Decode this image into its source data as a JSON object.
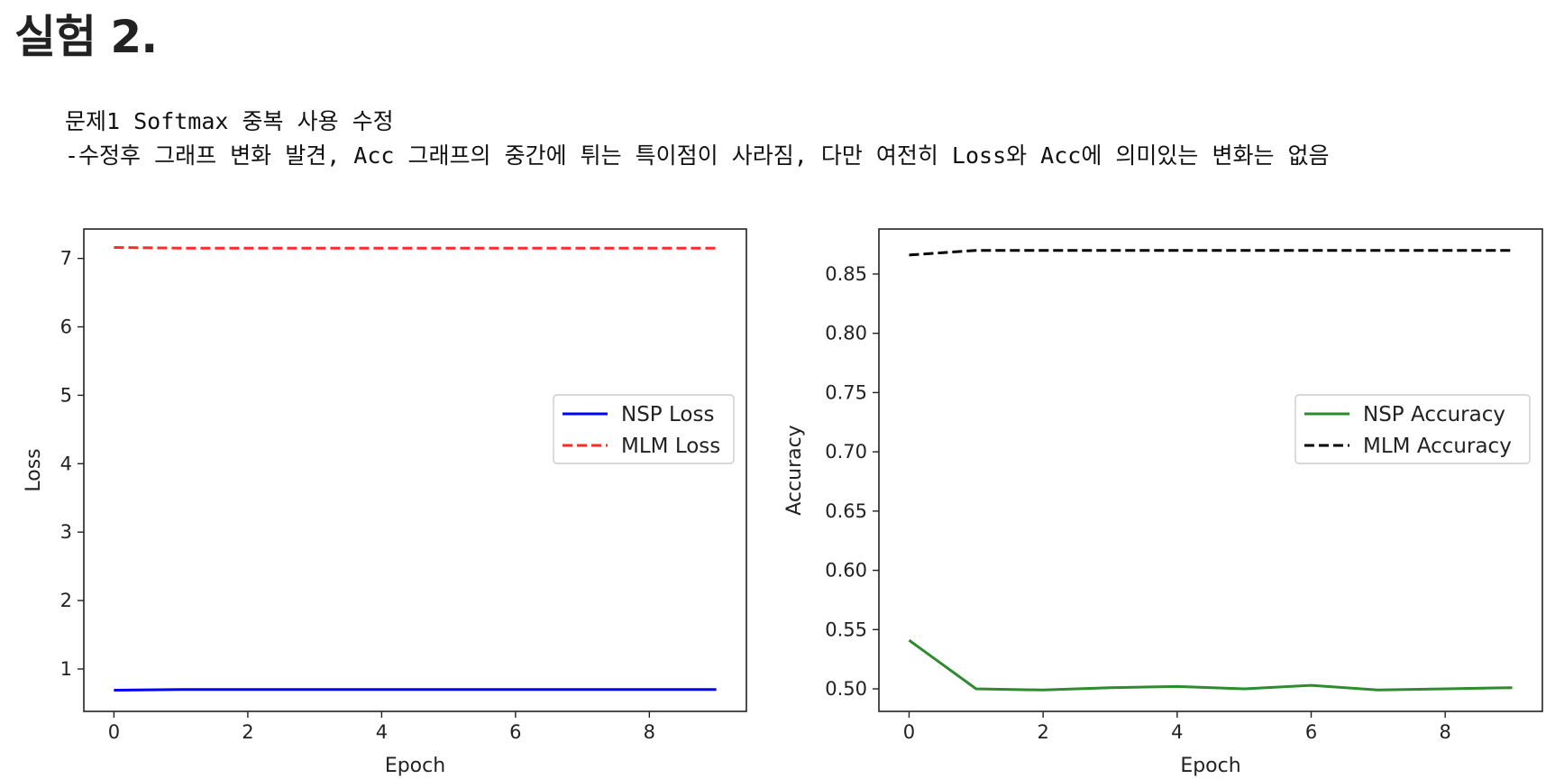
{
  "heading": "실험 2.",
  "note": {
    "line1": "문제1 Softmax 중복 사용 수정",
    "line2": "-수정후 그래프 변화 발견, Acc 그래프의 중간에 튀는 특이점이 사라짐, 다만 여전히 Loss와 Acc에 의미있는 변화는 없음"
  },
  "chart_data": [
    {
      "type": "line",
      "title": "",
      "xlabel": "Epoch",
      "ylabel": "Loss",
      "x": [
        0,
        1,
        2,
        3,
        4,
        5,
        6,
        7,
        8,
        9
      ],
      "xlim": [
        -0.45,
        9.45
      ],
      "ylim": [
        0.38,
        7.43
      ],
      "xticks": [
        0,
        2,
        4,
        6,
        8
      ],
      "yticks": [
        1,
        2,
        3,
        4,
        5,
        6,
        7
      ],
      "grid": false,
      "legend_position": "center-right",
      "series": [
        {
          "name": "NSP Loss",
          "color": "#0000ff",
          "style": "solid",
          "values": [
            0.69,
            0.7,
            0.7,
            0.7,
            0.7,
            0.7,
            0.7,
            0.7,
            0.7,
            0.7
          ]
        },
        {
          "name": "MLM Loss",
          "color": "#ff2a2a",
          "style": "dashed",
          "values": [
            7.16,
            7.15,
            7.15,
            7.15,
            7.15,
            7.15,
            7.15,
            7.15,
            7.15,
            7.15
          ]
        }
      ]
    },
    {
      "type": "line",
      "title": "",
      "xlabel": "Epoch",
      "ylabel": "Accuracy",
      "x": [
        0,
        1,
        2,
        3,
        4,
        5,
        6,
        7,
        8,
        9
      ],
      "xlim": [
        -0.45,
        9.45
      ],
      "ylim": [
        0.481,
        0.888
      ],
      "xticks": [
        0,
        2,
        4,
        6,
        8
      ],
      "yticks": [
        0.5,
        0.55,
        0.6,
        0.65,
        0.7,
        0.75,
        0.8,
        0.85
      ],
      "yticklabels": [
        "0.50",
        "0.55",
        "0.60",
        "0.65",
        "0.70",
        "0.75",
        "0.80",
        "0.85"
      ],
      "grid": false,
      "legend_position": "center-right",
      "series": [
        {
          "name": "NSP Accuracy",
          "color": "#2e8b2e",
          "style": "solid",
          "values": [
            0.541,
            0.5,
            0.499,
            0.501,
            0.502,
            0.5,
            0.503,
            0.499,
            0.5,
            0.501
          ]
        },
        {
          "name": "MLM Accuracy",
          "color": "#000000",
          "style": "dashed",
          "values": [
            0.866,
            0.87,
            0.87,
            0.87,
            0.87,
            0.87,
            0.87,
            0.87,
            0.87,
            0.87
          ]
        }
      ]
    }
  ]
}
